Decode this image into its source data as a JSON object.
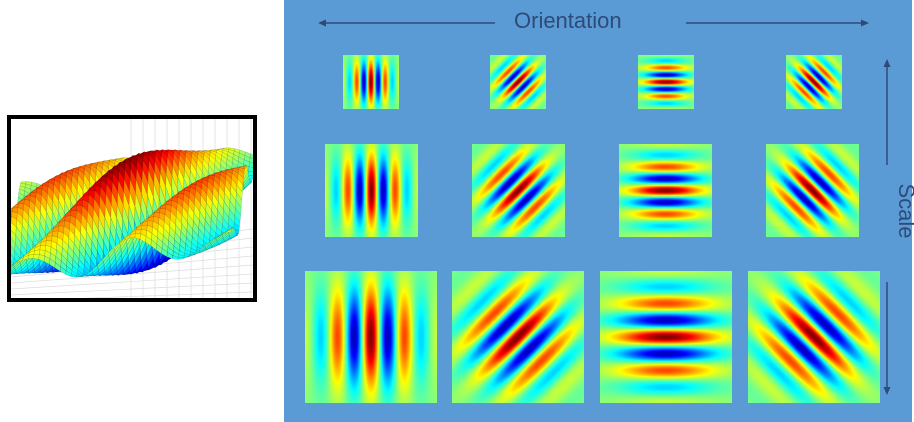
{
  "labels": {
    "orientation": "Orientation",
    "scale": "Scale"
  },
  "colors": {
    "panel": "#5b9bd5",
    "axis_text": "#2e4a78",
    "arrow": "#2e4a78",
    "frame": "#000000",
    "colormap": "jet"
  },
  "filter_bank": {
    "orientations_deg": [
      0,
      45,
      90,
      135
    ],
    "scale_rows": 3
  },
  "surface_plot": {
    "kind": "3d-gabor-surface"
  }
}
